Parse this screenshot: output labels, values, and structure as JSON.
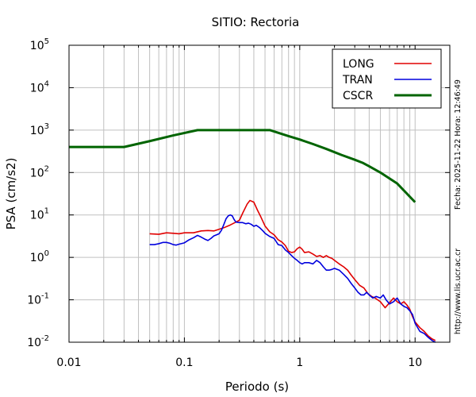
{
  "chart_data": {
    "type": "line",
    "title": "SITIO: Rectoria",
    "xlabel": "Periodo (s)",
    "ylabel": "PSA (cm/s2)",
    "xscale": "log",
    "yscale": "log",
    "xlim": [
      0.01,
      20
    ],
    "ylim": [
      0.01,
      100000
    ],
    "grid": true,
    "legend_position": "top-right",
    "x_ticks": [
      {
        "value": 0.01,
        "label": "0.01"
      },
      {
        "value": 0.1,
        "label": "0.1"
      },
      {
        "value": 1,
        "label": "1"
      },
      {
        "value": 10,
        "label": "10"
      }
    ],
    "y_ticks": [
      {
        "value": 0.01,
        "base": "10",
        "exp": "-2"
      },
      {
        "value": 0.1,
        "base": "10",
        "exp": "-1"
      },
      {
        "value": 1,
        "base": "10",
        "exp": "0"
      },
      {
        "value": 10,
        "base": "10",
        "exp": "1"
      },
      {
        "value": 100,
        "base": "10",
        "exp": "2"
      },
      {
        "value": 1000,
        "base": "10",
        "exp": "3"
      },
      {
        "value": 10000,
        "base": "10",
        "exp": "4"
      },
      {
        "value": 100000,
        "base": "10",
        "exp": "5"
      }
    ],
    "series": [
      {
        "name": "LONG",
        "color": "#e00000",
        "width": 1.6,
        "points": [
          [
            0.05,
            3.6
          ],
          [
            0.06,
            3.5
          ],
          [
            0.07,
            3.8
          ],
          [
            0.08,
            3.7
          ],
          [
            0.09,
            3.6
          ],
          [
            0.1,
            3.8
          ],
          [
            0.12,
            3.8
          ],
          [
            0.14,
            4.2
          ],
          [
            0.16,
            4.3
          ],
          [
            0.18,
            4.2
          ],
          [
            0.2,
            4.6
          ],
          [
            0.22,
            5.0
          ],
          [
            0.25,
            5.8
          ],
          [
            0.28,
            6.8
          ],
          [
            0.3,
            7.5
          ],
          [
            0.32,
            11
          ],
          [
            0.35,
            18
          ],
          [
            0.37,
            22
          ],
          [
            0.4,
            20
          ],
          [
            0.43,
            13
          ],
          [
            0.46,
            9
          ],
          [
            0.5,
            5.5
          ],
          [
            0.55,
            4.0
          ],
          [
            0.6,
            3.4
          ],
          [
            0.65,
            2.6
          ],
          [
            0.7,
            2.3
          ],
          [
            0.75,
            1.9
          ],
          [
            0.8,
            1.4
          ],
          [
            0.85,
            1.3
          ],
          [
            0.9,
            1.35
          ],
          [
            0.95,
            1.6
          ],
          [
            1.0,
            1.75
          ],
          [
            1.05,
            1.55
          ],
          [
            1.1,
            1.3
          ],
          [
            1.2,
            1.35
          ],
          [
            1.3,
            1.2
          ],
          [
            1.4,
            1.05
          ],
          [
            1.5,
            1.1
          ],
          [
            1.6,
            1.0
          ],
          [
            1.7,
            1.1
          ],
          [
            1.8,
            1.0
          ],
          [
            1.9,
            0.95
          ],
          [
            2.0,
            0.85
          ],
          [
            2.2,
            0.7
          ],
          [
            2.4,
            0.6
          ],
          [
            2.6,
            0.5
          ],
          [
            2.8,
            0.38
          ],
          [
            3.0,
            0.3
          ],
          [
            3.3,
            0.22
          ],
          [
            3.6,
            0.19
          ],
          [
            3.9,
            0.14
          ],
          [
            4.2,
            0.12
          ],
          [
            4.5,
            0.11
          ],
          [
            5.0,
            0.09
          ],
          [
            5.5,
            0.065
          ],
          [
            6.0,
            0.085
          ],
          [
            6.5,
            0.11
          ],
          [
            7.0,
            0.09
          ],
          [
            7.5,
            0.08
          ],
          [
            8.0,
            0.09
          ],
          [
            8.5,
            0.075
          ],
          [
            9.0,
            0.06
          ],
          [
            9.5,
            0.04
          ],
          [
            10,
            0.03
          ],
          [
            11,
            0.022
          ],
          [
            12,
            0.018
          ],
          [
            13,
            0.014
          ],
          [
            14,
            0.012
          ],
          [
            15,
            0.011
          ]
        ]
      },
      {
        "name": "TRAN",
        "color": "#0000dd",
        "width": 1.6,
        "points": [
          [
            0.05,
            2.0
          ],
          [
            0.055,
            2.0
          ],
          [
            0.06,
            2.1
          ],
          [
            0.065,
            2.25
          ],
          [
            0.07,
            2.25
          ],
          [
            0.075,
            2.15
          ],
          [
            0.08,
            2.0
          ],
          [
            0.085,
            1.95
          ],
          [
            0.09,
            2.05
          ],
          [
            0.1,
            2.2
          ],
          [
            0.11,
            2.6
          ],
          [
            0.12,
            2.9
          ],
          [
            0.13,
            3.3
          ],
          [
            0.14,
            3.0
          ],
          [
            0.15,
            2.7
          ],
          [
            0.16,
            2.5
          ],
          [
            0.17,
            2.8
          ],
          [
            0.18,
            3.2
          ],
          [
            0.19,
            3.4
          ],
          [
            0.2,
            3.6
          ],
          [
            0.21,
            4.4
          ],
          [
            0.22,
            6.0
          ],
          [
            0.23,
            8.2
          ],
          [
            0.24,
            9.5
          ],
          [
            0.25,
            10
          ],
          [
            0.26,
            9.5
          ],
          [
            0.27,
            7.8
          ],
          [
            0.28,
            6.8
          ],
          [
            0.3,
            6.6
          ],
          [
            0.32,
            6.6
          ],
          [
            0.34,
            6.2
          ],
          [
            0.36,
            6.4
          ],
          [
            0.38,
            6.0
          ],
          [
            0.4,
            5.4
          ],
          [
            0.42,
            5.7
          ],
          [
            0.45,
            5.0
          ],
          [
            0.48,
            4.2
          ],
          [
            0.5,
            3.7
          ],
          [
            0.55,
            3.1
          ],
          [
            0.6,
            2.8
          ],
          [
            0.65,
            2.0
          ],
          [
            0.7,
            1.9
          ],
          [
            0.75,
            1.5
          ],
          [
            0.8,
            1.3
          ],
          [
            0.85,
            1.1
          ],
          [
            0.9,
            0.95
          ],
          [
            0.95,
            0.85
          ],
          [
            1.0,
            0.75
          ],
          [
            1.05,
            0.7
          ],
          [
            1.1,
            0.75
          ],
          [
            1.2,
            0.75
          ],
          [
            1.3,
            0.7
          ],
          [
            1.4,
            0.85
          ],
          [
            1.5,
            0.75
          ],
          [
            1.6,
            0.6
          ],
          [
            1.7,
            0.5
          ],
          [
            1.8,
            0.5
          ],
          [
            1.9,
            0.52
          ],
          [
            2.0,
            0.55
          ],
          [
            2.2,
            0.5
          ],
          [
            2.4,
            0.4
          ],
          [
            2.6,
            0.32
          ],
          [
            2.8,
            0.24
          ],
          [
            3.0,
            0.19
          ],
          [
            3.2,
            0.15
          ],
          [
            3.4,
            0.13
          ],
          [
            3.6,
            0.13
          ],
          [
            3.8,
            0.15
          ],
          [
            4.0,
            0.13
          ],
          [
            4.3,
            0.11
          ],
          [
            4.6,
            0.12
          ],
          [
            5.0,
            0.11
          ],
          [
            5.3,
            0.13
          ],
          [
            5.6,
            0.1
          ],
          [
            6.0,
            0.08
          ],
          [
            6.5,
            0.09
          ],
          [
            7.0,
            0.11
          ],
          [
            7.5,
            0.08
          ],
          [
            8.0,
            0.07
          ],
          [
            8.5,
            0.065
          ],
          [
            9.0,
            0.055
          ],
          [
            9.5,
            0.045
          ],
          [
            10,
            0.028
          ],
          [
            11,
            0.018
          ],
          [
            12,
            0.016
          ],
          [
            13,
            0.013
          ],
          [
            14,
            0.011
          ],
          [
            15,
            0.0085
          ]
        ]
      },
      {
        "name": "CSCR",
        "color": "#006400",
        "width": 3,
        "points": [
          [
            0.01,
            400
          ],
          [
            0.03,
            400
          ],
          [
            0.05,
            550
          ],
          [
            0.08,
            750
          ],
          [
            0.13,
            1000
          ],
          [
            0.55,
            1000
          ],
          [
            0.8,
            720
          ],
          [
            1.0,
            600
          ],
          [
            1.3,
            470
          ],
          [
            1.7,
            360
          ],
          [
            2.3,
            260
          ],
          [
            3.0,
            200
          ],
          [
            3.5,
            170
          ],
          [
            4.0,
            140
          ],
          [
            5.0,
            100
          ],
          [
            7.0,
            55
          ],
          [
            10,
            20
          ]
        ]
      }
    ],
    "annotations": [
      "Fecha: 2025-11-22  Hora: 12:46:49",
      "http://www.lis.ucr.ac.cr"
    ]
  }
}
